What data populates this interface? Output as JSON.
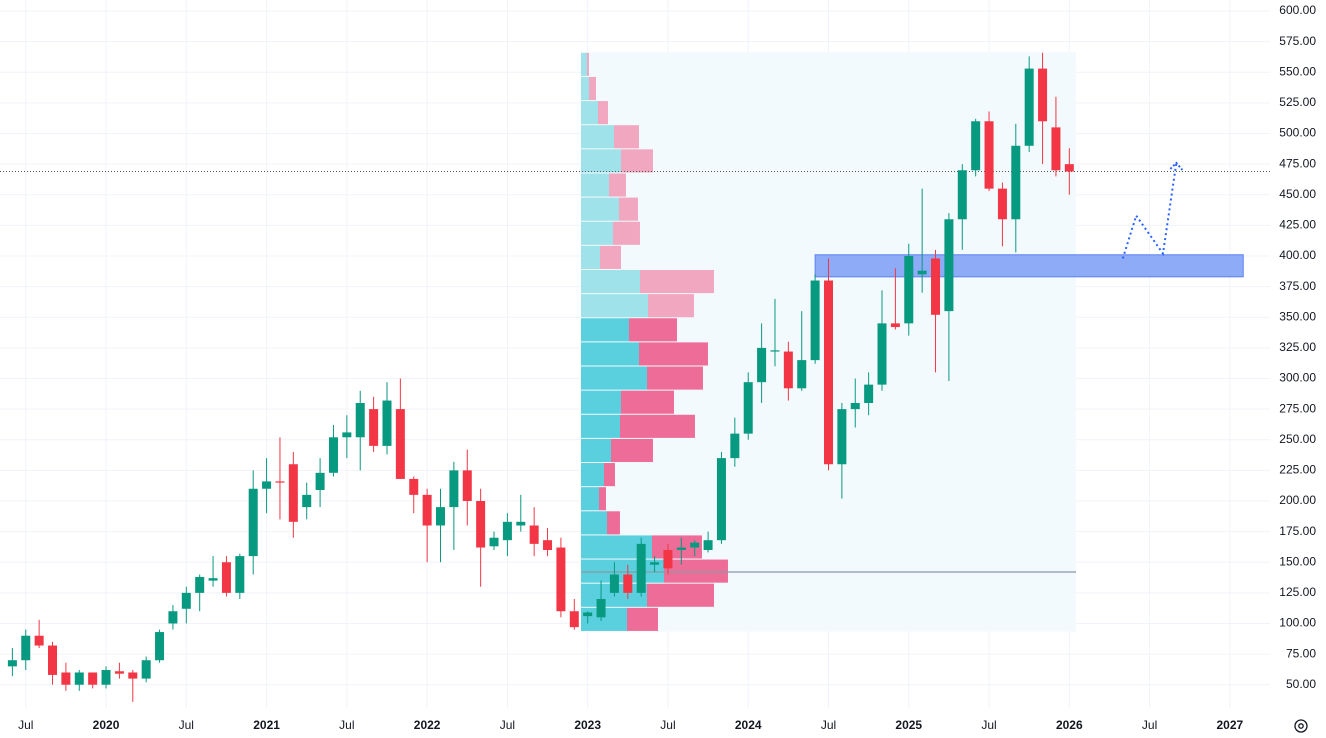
{
  "chart_data": {
    "type": "candlestick",
    "x": [
      "2019-06",
      "2019-07",
      "2019-08",
      "2019-09",
      "2019-10",
      "2019-11",
      "2019-12",
      "2020-01",
      "2020-02",
      "2020-03",
      "2020-04",
      "2020-05",
      "2020-06",
      "2020-07",
      "2020-08",
      "2020-09",
      "2020-10",
      "2020-11",
      "2020-12",
      "2021-01",
      "2021-02",
      "2021-03",
      "2021-04",
      "2021-05",
      "2021-06",
      "2021-07",
      "2021-08",
      "2021-09",
      "2021-10",
      "2021-11",
      "2021-12",
      "2022-01",
      "2022-02",
      "2022-03",
      "2022-04",
      "2022-05",
      "2022-06",
      "2022-07",
      "2022-08",
      "2022-09",
      "2022-10",
      "2022-11",
      "2022-12",
      "2023-01",
      "2023-02",
      "2023-03",
      "2023-04",
      "2023-05",
      "2023-06",
      "2023-07",
      "2023-08",
      "2023-09",
      "2023-10",
      "2023-11",
      "2023-12",
      "2024-01",
      "2024-02",
      "2024-03",
      "2024-04",
      "2024-05",
      "2024-06",
      "2024-07",
      "2024-08",
      "2024-09",
      "2024-10",
      "2024-11",
      "2024-12",
      "2025-01",
      "2025-02",
      "2025-03",
      "2025-04",
      "2025-05",
      "2025-06",
      "2025-07",
      "2025-08",
      "2025-09",
      "2025-10",
      "2025-11",
      "2025-12",
      "2026-01"
    ],
    "open": [
      65,
      70,
      90,
      82,
      60,
      50,
      60,
      50,
      61,
      60,
      55,
      70,
      100,
      112,
      125,
      135,
      150,
      125,
      155,
      210,
      216,
      230,
      195,
      209,
      223,
      252,
      252,
      275,
      245,
      275,
      218,
      205,
      180,
      195,
      225,
      200,
      163,
      168,
      180,
      180,
      168,
      162,
      110,
      106,
      105,
      125,
      140,
      125,
      148,
      160,
      160,
      162,
      160,
      168,
      235,
      255,
      297,
      322,
      322,
      292,
      315,
      380,
      230,
      275,
      280,
      295,
      345,
      345,
      385,
      398,
      355,
      430,
      470,
      510,
      455,
      430,
      490,
      553,
      505,
      475
    ],
    "high": [
      80,
      95,
      103,
      85,
      68,
      62,
      60,
      65,
      68,
      62,
      73,
      95,
      115,
      130,
      140,
      155,
      155,
      157,
      225,
      235,
      252,
      240,
      215,
      235,
      262,
      270,
      290,
      285,
      297,
      300,
      220,
      210,
      210,
      232,
      242,
      210,
      175,
      190,
      205,
      195,
      178,
      170,
      120,
      110,
      135,
      150,
      148,
      170,
      155,
      165,
      170,
      168,
      175,
      240,
      268,
      305,
      345,
      365,
      330,
      355,
      385,
      398,
      280,
      300,
      305,
      372,
      390,
      410,
      455,
      405,
      435,
      475,
      512,
      518,
      460,
      508,
      563,
      566,
      530,
      488
    ],
    "low": [
      57,
      62,
      80,
      50,
      45,
      45,
      47,
      47,
      55,
      36,
      52,
      68,
      95,
      100,
      110,
      130,
      122,
      120,
      140,
      190,
      185,
      170,
      185,
      195,
      220,
      235,
      225,
      240,
      238,
      218,
      190,
      150,
      150,
      160,
      180,
      130,
      160,
      155,
      175,
      155,
      155,
      105,
      95,
      100,
      102,
      122,
      120,
      122,
      142,
      140,
      148,
      155,
      158,
      165,
      228,
      250,
      280,
      310,
      282,
      290,
      312,
      225,
      202,
      260,
      270,
      290,
      340,
      335,
      370,
      305,
      298,
      405,
      465,
      453,
      408,
      403,
      485,
      475,
      465,
      450
    ],
    "close": [
      70,
      90,
      82,
      58,
      50,
      60,
      50,
      62,
      59,
      55,
      70,
      93,
      110,
      125,
      138,
      137,
      125,
      155,
      210,
      216,
      215,
      183,
      205,
      223,
      252,
      256,
      280,
      245,
      282,
      218,
      205,
      180,
      195,
      225,
      200,
      162,
      170,
      183,
      183,
      165,
      160,
      110,
      97,
      109,
      120,
      140,
      125,
      165,
      150,
      145,
      162,
      166,
      168,
      235,
      255,
      297,
      325,
      323,
      292,
      315,
      380,
      230,
      275,
      280,
      295,
      345,
      342,
      400,
      388,
      352,
      430,
      470,
      510,
      455,
      430,
      490,
      553,
      510,
      470,
      469
    ],
    "up_color": "#089981",
    "down_color": "#f23645",
    "xlim": [
      "2019-05",
      "2027-04"
    ],
    "xticks": [
      {
        "value": "2019-07",
        "label": "Jul"
      },
      {
        "value": "2020-01",
        "label": "2020"
      },
      {
        "value": "2020-07",
        "label": "Jul"
      },
      {
        "value": "2021-01",
        "label": "2021"
      },
      {
        "value": "2021-07",
        "label": "Jul"
      },
      {
        "value": "2022-01",
        "label": "2022"
      },
      {
        "value": "2022-07",
        "label": "Jul"
      },
      {
        "value": "2023-01",
        "label": "2023"
      },
      {
        "value": "2023-07",
        "label": "Jul"
      },
      {
        "value": "2024-01",
        "label": "2024"
      },
      {
        "value": "2024-07",
        "label": "Jul"
      },
      {
        "value": "2025-01",
        "label": "2025"
      },
      {
        "value": "2025-07",
        "label": "Jul"
      },
      {
        "value": "2026-01",
        "label": "2026"
      },
      {
        "value": "2026-07",
        "label": "Jul"
      },
      {
        "value": "2027-01",
        "label": "2027"
      }
    ],
    "ylim": [
      31,
      609
    ],
    "yticks": [
      {
        "value": 50,
        "label": "50.00"
      },
      {
        "value": 75,
        "label": "75.00"
      },
      {
        "value": 100,
        "label": "100.00"
      },
      {
        "value": 125,
        "label": "125.00"
      },
      {
        "value": 150,
        "label": "150.00"
      },
      {
        "value": 175,
        "label": "175.00"
      },
      {
        "value": 200,
        "label": "200.00"
      },
      {
        "value": 225,
        "label": "225.00"
      },
      {
        "value": 250,
        "label": "250.00"
      },
      {
        "value": 275,
        "label": "275.00"
      },
      {
        "value": 300,
        "label": "300.00"
      },
      {
        "value": 325,
        "label": "325.00"
      },
      {
        "value": 350,
        "label": "350.00"
      },
      {
        "value": 375,
        "label": "375.00"
      },
      {
        "value": 400,
        "label": "400.00"
      },
      {
        "value": 425,
        "label": "425.00"
      },
      {
        "value": 450,
        "label": "450.00"
      },
      {
        "value": 475,
        "label": "475.00"
      },
      {
        "value": 500,
        "label": "500.00"
      },
      {
        "value": 525,
        "label": "525.00"
      },
      {
        "value": 550,
        "label": "550.00"
      },
      {
        "value": 575,
        "label": "575.00"
      },
      {
        "value": 600,
        "label": "600.00"
      }
    ],
    "grid": true,
    "volume_profile": {
      "start": "2023-01",
      "end": "2026-01",
      "bins": [
        93.5,
        113.2,
        132.9,
        152.6,
        172.3,
        192,
        211.7,
        231.4,
        251.1,
        270.8,
        290.5,
        310.2,
        329.9,
        349.6,
        369.3,
        389,
        408.7,
        428.4,
        448.1,
        467.8,
        487.5,
        507.2,
        526.9,
        546.6,
        566.3
      ],
      "up": [
        46,
        66,
        83,
        71,
        26,
        18,
        23,
        30,
        39,
        40,
        66,
        58,
        48,
        67,
        59,
        19,
        32,
        38,
        28,
        40,
        33,
        17,
        8,
        6
      ],
      "down": [
        31,
        67,
        64,
        50,
        13,
        7,
        11,
        42,
        75,
        53,
        56,
        69,
        48,
        46,
        74,
        21,
        27,
        19,
        17,
        32,
        25,
        10,
        7,
        2
      ],
      "value_area": [
        93.5,
        349.6
      ],
      "poc": 142,
      "up_color": "#5ad0df",
      "down_color": "#ee6d98",
      "up_light_color": "#9fe2ea",
      "down_light_color": "#f2a7c0",
      "background": "#f2fafd"
    },
    "zone": {
      "start": "2024-06",
      "end": "2027-02",
      "low": 383,
      "high": 401,
      "color": "#8dabf7"
    },
    "projection": {
      "x": [
        "2026-05",
        "2026-06",
        "2026-08",
        "2026-09"
      ],
      "values": [
        398,
        433,
        402,
        476
      ],
      "color": "#2962ff"
    }
  }
}
